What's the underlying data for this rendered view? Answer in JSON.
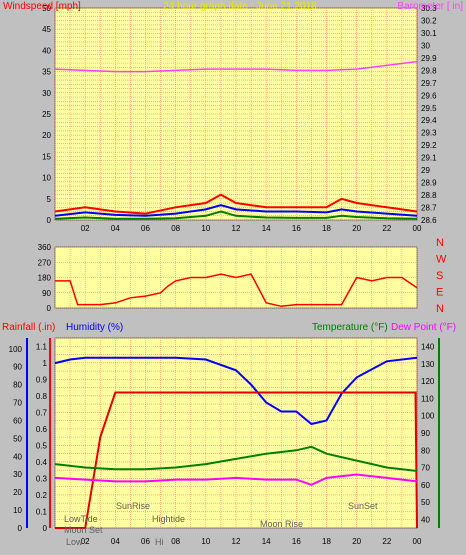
{
  "chart_data": [
    {
      "id": "wind_baro",
      "type": "line",
      "title": "24 hour graph date : June 21 2018",
      "ylabel_left": "Windspeed [mph]",
      "ylabel_right": "Barometer [ in]",
      "left_ticks": [
        "0",
        "5",
        "10",
        "15",
        "20",
        "25",
        "30",
        "35",
        "40",
        "45",
        "50"
      ],
      "right_ticks": [
        "28.6",
        "28.7",
        "28.8",
        "28.9",
        "29",
        "29.1",
        "29.2",
        "29.3",
        "29.4",
        "29.5",
        "29.6",
        "29.7",
        "29.8",
        "29.9",
        "30",
        "30.1",
        "30.2",
        "30.3"
      ],
      "x_ticks": [
        "02",
        "04",
        "06",
        "08",
        "10",
        "12",
        "14",
        "16",
        "18",
        "20",
        "22",
        "00"
      ],
      "ylim_left": [
        0,
        50
      ],
      "ylim_right": [
        28.6,
        30.3
      ],
      "series": [
        {
          "color": "#ff40ff",
          "axis": "right",
          "x": [
            0,
            2,
            4,
            6,
            8,
            10,
            12,
            14,
            16,
            18,
            20,
            22,
            24
          ],
          "y": [
            29.81,
            29.8,
            29.79,
            29.79,
            29.8,
            29.81,
            29.81,
            29.81,
            29.8,
            29.8,
            29.81,
            29.84,
            29.87
          ]
        },
        {
          "color": "#ff0000",
          "axis": "left",
          "x": [
            0,
            2,
            4,
            6,
            8,
            10,
            11,
            12,
            14,
            16,
            18,
            19,
            20,
            22,
            24
          ],
          "y": [
            2,
            3,
            2,
            1.5,
            3,
            4,
            6,
            4,
            3,
            3,
            3,
            5,
            4,
            3,
            2
          ]
        },
        {
          "color": "#0000ff",
          "axis": "left",
          "x": [
            0,
            2,
            4,
            6,
            8,
            10,
            11,
            12,
            14,
            16,
            18,
            19,
            20,
            22,
            24
          ],
          "y": [
            1,
            1.8,
            1.2,
            1,
            1.5,
            2.5,
            3.5,
            2.5,
            2,
            2,
            1.8,
            2.5,
            2,
            1.5,
            1
          ]
        },
        {
          "color": "#008000",
          "axis": "left",
          "x": [
            0,
            2,
            4,
            6,
            8,
            10,
            11,
            12,
            14,
            16,
            18,
            19,
            20,
            22,
            24
          ],
          "y": [
            0.3,
            0.6,
            0.3,
            0.3,
            0.4,
            1,
            2,
            1,
            0.6,
            0.5,
            0.5,
            1,
            0.7,
            0.4,
            0.3
          ]
        }
      ]
    },
    {
      "id": "winddir",
      "type": "line",
      "left_ticks": [
        "0",
        "90",
        "180",
        "270",
        "360"
      ],
      "right_labels": [
        "N",
        "W",
        "S",
        "E",
        "N"
      ],
      "ylim": [
        0,
        360
      ],
      "series": [
        {
          "color": "#ff0000",
          "x": [
            0,
            0.5,
            1,
            1.5,
            2,
            3,
            4,
            5,
            6,
            7,
            7.5,
            8,
            9,
            10,
            11,
            12,
            13,
            14,
            15,
            16,
            17,
            18,
            19,
            20,
            21,
            22,
            23,
            24
          ],
          "y": [
            160,
            160,
            160,
            20,
            20,
            20,
            30,
            60,
            70,
            90,
            130,
            160,
            180,
            180,
            200,
            180,
            200,
            30,
            10,
            20,
            20,
            20,
            20,
            180,
            160,
            180,
            180,
            120
          ]
        }
      ]
    },
    {
      "id": "rain_hum_temp",
      "type": "line",
      "labels": {
        "rain": "Rainfall (.in)",
        "humidity": "Humidity (%)",
        "temperature": "Temperature (°F)",
        "dewpoint": "Dew Point (°F)"
      },
      "humidity_ticks": [
        "0",
        "10",
        "20",
        "30",
        "40",
        "50",
        "60",
        "70",
        "80",
        "90",
        "100"
      ],
      "rain_ticks": [
        "0",
        "0.1",
        "0.2",
        "0.3",
        "0.4",
        "0.5",
        "0.6",
        "0.7",
        "0.8",
        "0.9",
        "1",
        "1.1"
      ],
      "temp_ticks": [
        "40",
        "50",
        "60",
        "70",
        "80",
        "90",
        "100",
        "110",
        "120",
        "130",
        "140"
      ],
      "x_ticks": [
        "02",
        "04",
        "06",
        "08",
        "10",
        "12",
        "14",
        "16",
        "18",
        "20",
        "22",
        "00"
      ],
      "ylim_rain": [
        0,
        1.15
      ],
      "ylim_temp": [
        35,
        145
      ],
      "series": [
        {
          "name": "Humidity (%)",
          "color": "#0000ff",
          "axis": "humidity",
          "x": [
            0,
            1,
            2,
            4,
            6,
            8,
            10,
            12,
            13,
            14,
            15,
            16,
            17,
            18,
            19,
            20,
            22,
            24
          ],
          "y": [
            92,
            94,
            95,
            95,
            95,
            95,
            94,
            88,
            80,
            70,
            65,
            65,
            58,
            60,
            75,
            84,
            93,
            95
          ]
        },
        {
          "name": "Rainfall (.in)",
          "color": "#e00000",
          "axis": "rain",
          "x": [
            0,
            2,
            3,
            4,
            6,
            8,
            10,
            12,
            14,
            16,
            18,
            20,
            22,
            23.9,
            24
          ],
          "y": [
            0,
            0,
            0.55,
            0.82,
            0.82,
            0.82,
            0.82,
            0.82,
            0.82,
            0.82,
            0.82,
            0.82,
            0.82,
            0.82,
            0
          ]
        },
        {
          "name": "Temperature (°F)",
          "color": "#008000",
          "axis": "temp",
          "x": [
            0,
            2,
            4,
            6,
            8,
            10,
            12,
            14,
            16,
            17,
            18,
            20,
            22,
            24
          ],
          "y": [
            72,
            70,
            69,
            69,
            70,
            72,
            75,
            78,
            80,
            82,
            78,
            74,
            70,
            68
          ]
        },
        {
          "name": "Dew Point (°F)",
          "color": "#ff00ff",
          "axis": "temp",
          "x": [
            0,
            2,
            4,
            6,
            8,
            10,
            12,
            14,
            16,
            17,
            18,
            20,
            22,
            24
          ],
          "y": [
            64,
            63,
            62,
            62,
            63,
            63,
            64,
            63,
            63,
            60,
            64,
            66,
            64,
            62
          ]
        }
      ],
      "events": [
        "LowTide",
        "Moon Set",
        "SunRise",
        "Hightide",
        "Moon Rise",
        "SunSet",
        "Low",
        "Hi"
      ]
    }
  ]
}
